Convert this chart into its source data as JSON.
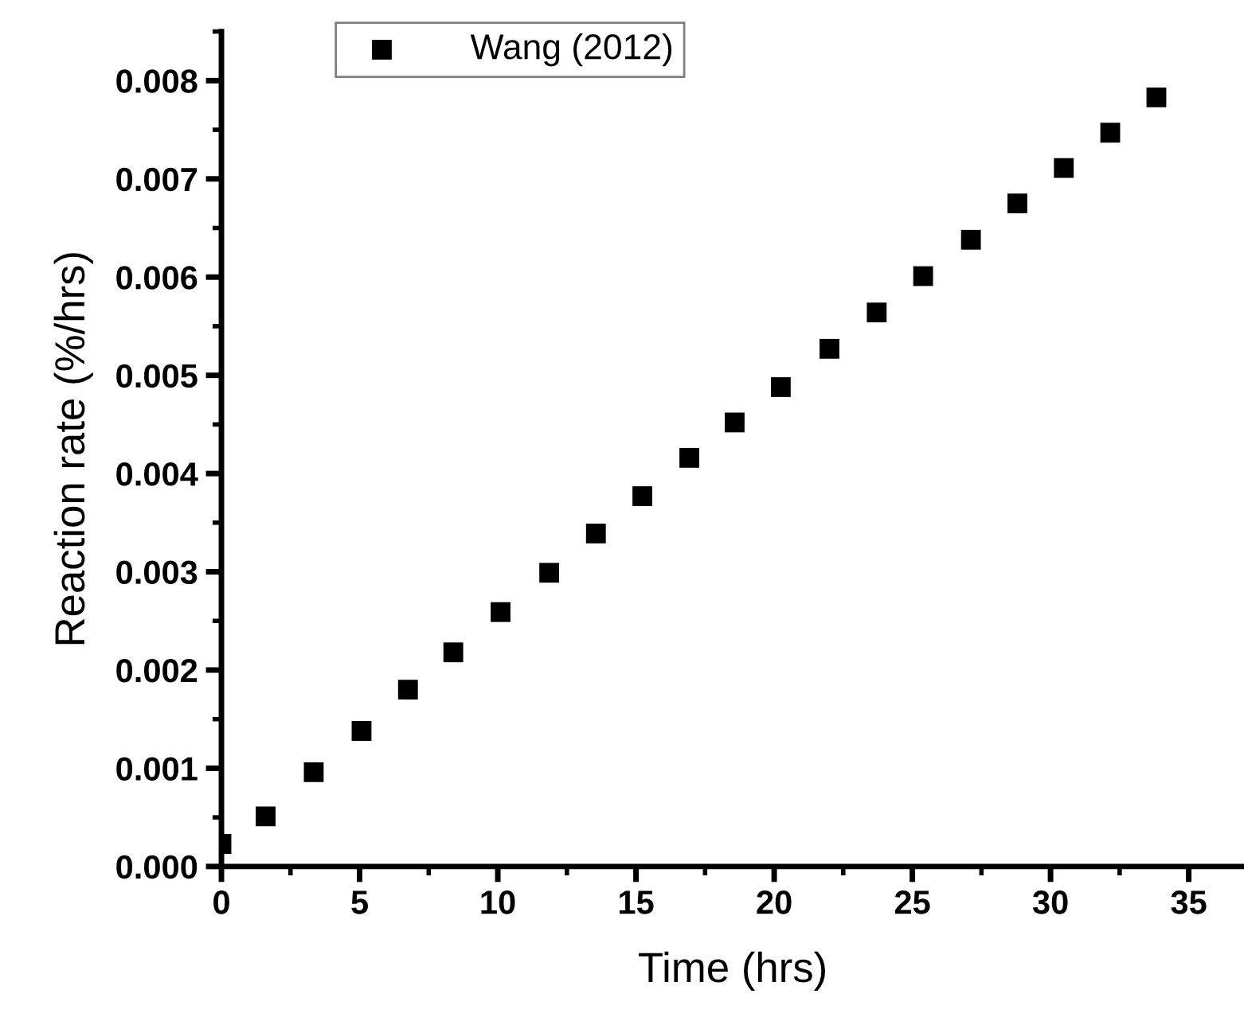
{
  "chart_data": {
    "type": "scatter",
    "xlabel": "Time (hrs)",
    "ylabel": "Reaction rate (%/hrs)",
    "xlim": [
      0,
      37
    ],
    "xticks": [
      0,
      5,
      10,
      15,
      20,
      25,
      30,
      35
    ],
    "ylim": [
      0,
      0.0085
    ],
    "yticks": [
      {
        "value": 0,
        "label": "0.000"
      },
      {
        "value": 0.001,
        "label": "0.001"
      },
      {
        "value": 0.002,
        "label": "0.002"
      },
      {
        "value": 0.003,
        "label": "0.003"
      },
      {
        "value": 0.004,
        "label": "0.004"
      },
      {
        "value": 0.005,
        "label": "0.005"
      },
      {
        "value": 0.006,
        "label": "0.006"
      },
      {
        "value": 0.007,
        "label": "0.007"
      },
      {
        "value": 0.008,
        "label": "0.008"
      }
    ],
    "grid": false,
    "legend": "top",
    "marker": "square",
    "series": [
      {
        "name": "Wang (2012)",
        "color": "#000000",
        "x": [
          0,
          1.6,
          3.34,
          5.07,
          6.75,
          8.39,
          10.1,
          11.86,
          13.55,
          15.23,
          16.93,
          18.57,
          20.24,
          22.0,
          23.71,
          25.39,
          27.12,
          28.8,
          30.48,
          32.16,
          33.83
        ],
        "values": [
          0.00023,
          0.00051,
          0.00096,
          0.00138,
          0.0018,
          0.00218,
          0.00259,
          0.00299,
          0.00339,
          0.00377,
          0.00416,
          0.00452,
          0.00488,
          0.00527,
          0.00564,
          0.00601,
          0.00638,
          0.00675,
          0.00711,
          0.00747,
          0.00783
        ]
      }
    ]
  }
}
